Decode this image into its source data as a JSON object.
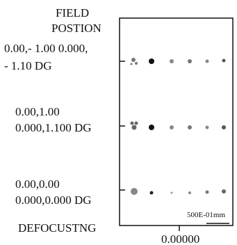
{
  "header": {
    "lines": [
      "FIELD",
      "POSTION"
    ]
  },
  "rows": [
    {
      "lines": [
        "0.00,- 1.00 0.000,",
        "- 1.10 DG"
      ]
    },
    {
      "lines": [
        "0.00,1.00",
        "0.000,1.100 DG"
      ]
    },
    {
      "lines": [
        "0.00,0.00",
        "0.000,0.000 DG"
      ]
    }
  ],
  "scale_label": "500E-01mm",
  "x_label": "DEFOCUSTNG",
  "defocus": "0.00000"
}
